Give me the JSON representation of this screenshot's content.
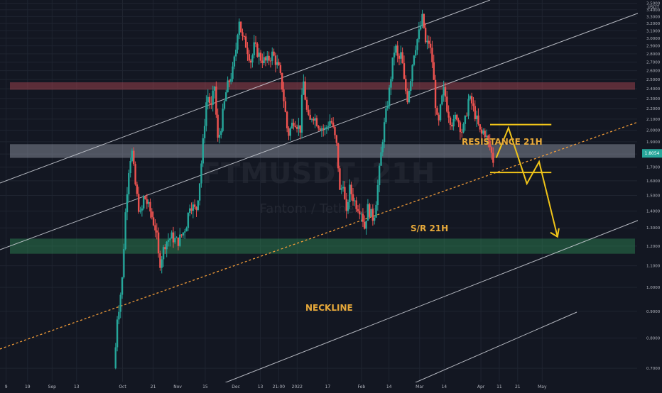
{
  "chart_data": {
    "type": "candlestick",
    "watermark": {
      "symbol": "FTMUSDT, 21H",
      "description": "Fantom / TetherUS"
    },
    "currency": "USDT",
    "y_axis": {
      "scale": "log",
      "range": [
        0.66,
        3.55
      ],
      "ticks": [
        "3.5000",
        "3.4000",
        "3.3000",
        "3.2000",
        "3.1000",
        "3.0000",
        "2.9000",
        "2.8000",
        "2.7000",
        "2.6000",
        "2.5000",
        "2.4000",
        "2.3000",
        "2.2000",
        "2.1000",
        "2.0000",
        "1.9000",
        "1.8000",
        "1.7000",
        "1.6000",
        "1.5000",
        "1.4000",
        "1.3000",
        "1.2000",
        "1.1000",
        "1.0000",
        "0.9000",
        "0.8000",
        "0.7000"
      ],
      "current_price": "1.8054"
    },
    "x_axis": {
      "ticks": [
        "9",
        "19",
        "Sep",
        "13",
        "Oct",
        "21",
        "Nov",
        "15",
        "Dec",
        "13",
        "21:00",
        "2022",
        "17",
        "Feb",
        "14",
        "Mar",
        "14",
        "Apr",
        "11",
        "21",
        "May"
      ]
    },
    "grid": true,
    "price_path": [
      [
        1.86,
        0.7
      ],
      [
        1.88,
        0.72
      ],
      [
        1.9,
        0.86
      ],
      [
        1.95,
        0.93
      ],
      [
        2.0,
        1.05
      ],
      [
        2.05,
        1.4
      ],
      [
        2.1,
        1.68
      ],
      [
        2.15,
        1.84
      ],
      [
        2.2,
        1.6
      ],
      [
        2.25,
        1.45
      ],
      [
        2.3,
        1.36
      ],
      [
        2.35,
        1.5
      ],
      [
        2.45,
        1.4
      ],
      [
        2.55,
        1.28
      ],
      [
        2.6,
        1.1
      ],
      [
        2.7,
        1.22
      ],
      [
        2.8,
        1.25
      ],
      [
        2.9,
        1.22
      ],
      [
        3.0,
        1.28
      ],
      [
        3.05,
        1.33
      ],
      [
        3.1,
        1.45
      ],
      [
        3.2,
        1.4
      ],
      [
        3.25,
        1.55
      ],
      [
        3.3,
        1.8
      ],
      [
        3.38,
        2.35
      ],
      [
        3.45,
        2.2
      ],
      [
        3.5,
        2.45
      ],
      [
        3.55,
        1.9
      ],
      [
        3.6,
        2.0
      ],
      [
        3.7,
        2.4
      ],
      [
        3.8,
        2.6
      ],
      [
        3.85,
        2.85
      ],
      [
        3.9,
        3.3
      ],
      [
        3.95,
        3.0
      ],
      [
        4.0,
        2.95
      ],
      [
        4.1,
        2.7
      ],
      [
        4.15,
        2.9
      ],
      [
        4.25,
        2.75
      ],
      [
        4.35,
        2.7
      ],
      [
        4.45,
        2.8
      ],
      [
        4.55,
        2.62
      ],
      [
        4.6,
        2.45
      ],
      [
        4.65,
        2.2
      ],
      [
        4.7,
        1.95
      ],
      [
        4.8,
        2.1
      ],
      [
        4.9,
        2.0
      ],
      [
        4.95,
        2.5
      ],
      [
        5.0,
        2.2
      ],
      [
        5.05,
        2.05
      ],
      [
        5.1,
        2.15
      ],
      [
        5.2,
        2.05
      ],
      [
        5.3,
        2.0
      ],
      [
        5.4,
        2.1
      ],
      [
        5.5,
        1.85
      ],
      [
        5.55,
        1.5
      ],
      [
        5.6,
        1.6
      ],
      [
        5.65,
        1.35
      ],
      [
        5.7,
        1.55
      ],
      [
        5.8,
        1.45
      ],
      [
        5.9,
        1.4
      ],
      [
        5.95,
        1.3
      ],
      [
        6.0,
        1.42
      ],
      [
        6.1,
        1.35
      ],
      [
        6.15,
        1.5
      ],
      [
        6.2,
        1.7
      ],
      [
        6.25,
        1.95
      ],
      [
        6.3,
        2.15
      ],
      [
        6.35,
        2.35
      ],
      [
        6.4,
        2.65
      ],
      [
        6.45,
        2.92
      ],
      [
        6.5,
        2.7
      ],
      [
        6.55,
        2.8
      ],
      [
        6.6,
        2.45
      ],
      [
        6.65,
        2.3
      ],
      [
        6.7,
        2.5
      ],
      [
        6.75,
        2.8
      ],
      [
        6.8,
        2.95
      ],
      [
        6.85,
        3.1
      ],
      [
        6.9,
        3.3
      ],
      [
        6.95,
        2.9
      ],
      [
        7.0,
        2.95
      ],
      [
        7.05,
        2.75
      ],
      [
        7.1,
        2.3
      ],
      [
        7.15,
        2.0
      ],
      [
        7.2,
        2.25
      ],
      [
        7.25,
        2.4
      ],
      [
        7.3,
        2.2
      ],
      [
        7.35,
        2.1
      ],
      [
        7.4,
        2.05
      ],
      [
        7.45,
        2.15
      ],
      [
        7.5,
        2.05
      ],
      [
        7.55,
        1.98
      ],
      [
        7.6,
        2.1
      ],
      [
        7.65,
        2.3
      ],
      [
        7.7,
        2.25
      ],
      [
        7.75,
        2.15
      ],
      [
        7.8,
        2.05
      ],
      [
        7.85,
        1.95
      ],
      [
        7.9,
        2.0
      ],
      [
        7.95,
        1.92
      ],
      [
        8.0,
        1.85
      ],
      [
        8.05,
        1.75
      ]
    ],
    "zones": [
      {
        "label": "RESISTANCE 21H",
        "low": 2.39,
        "high": 2.47,
        "color": "#b34a55"
      },
      {
        "label": "S/R 21H",
        "low": 1.77,
        "high": 1.88,
        "color": "#9aa0ad"
      },
      {
        "label": "NECKLINE",
        "low": 1.16,
        "high": 1.24,
        "color": "#2e8b57"
      }
    ],
    "projection": {
      "path": [
        [
          8.1,
          1.77
        ],
        [
          8.3,
          2.02
        ],
        [
          8.6,
          1.58
        ],
        [
          8.8,
          1.74
        ],
        [
          9.1,
          1.25
        ]
      ],
      "upper_level": 2.05,
      "lower_level": 1.66,
      "color": "#f0c419"
    },
    "colors": {
      "up": "#26a69a",
      "down": "#ef5350",
      "background": "#131722",
      "grid": "#1f2430",
      "axis_text": "#b2b5be",
      "label": "#e7a93a",
      "trend_line": "#f29c38",
      "channel": "#d1d4dc",
      "price_badge": "#26a69a"
    }
  }
}
